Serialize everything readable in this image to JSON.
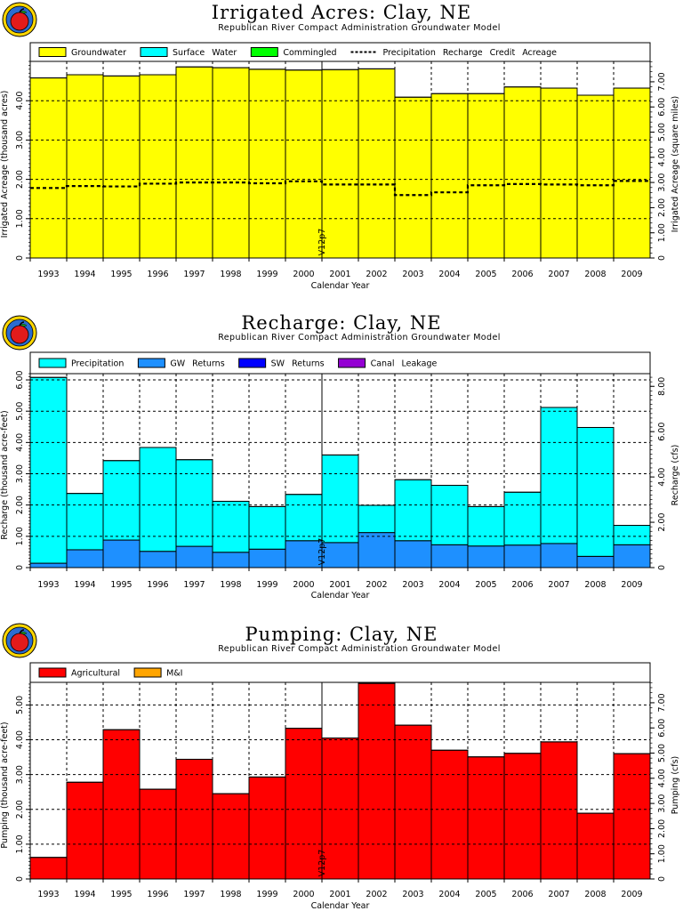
{
  "chart_data": [
    {
      "type": "area",
      "title": "Irrigated Acres:  Clay,  NE",
      "subtitle": "Republican River Compact Administration Groundwater Model",
      "xlabel": "Calendar Year",
      "ylabel": "Irrigated Acreage (thousand acres)",
      "y2label": "Irrigated Acreage (square miles)",
      "categories": [
        "1993",
        "1994",
        "1995",
        "1996",
        "1997",
        "1998",
        "1999",
        "2000",
        "2001",
        "2002",
        "2003",
        "2004",
        "2005",
        "2006",
        "2007",
        "2008",
        "2009"
      ],
      "ylim": [
        0,
        5
      ],
      "yticks": [
        "0",
        "1.00",
        "2.00",
        "3.00",
        "4.00"
      ],
      "y2ticks": [
        "0",
        "1.00",
        "2.00",
        "3.00",
        "4.00",
        "5.00",
        "6.00",
        "7.00"
      ],
      "y2lim": [
        0,
        7.81
      ],
      "legend": [
        {
          "name": "Groundwater",
          "color": "#ffff00",
          "style": "box"
        },
        {
          "name": "Surface Water",
          "color": "#00ffff",
          "style": "box"
        },
        {
          "name": "Commingled",
          "color": "#00ff00",
          "style": "box"
        },
        {
          "name": "Precipitation Recharge Credit Acreage",
          "color": "#000000",
          "style": "dash"
        }
      ],
      "series": [
        {
          "name": "Groundwater",
          "color": "#ffff00",
          "values": [
            4.58,
            4.66,
            4.63,
            4.66,
            4.86,
            4.84,
            4.8,
            4.78,
            4.79,
            4.81,
            4.09,
            4.18,
            4.18,
            4.35,
            4.32,
            4.14,
            4.32
          ]
        },
        {
          "name": "Surface Water",
          "color": "#00ffff",
          "values": [
            0,
            0,
            0,
            0,
            0,
            0,
            0,
            0,
            0,
            0,
            0,
            0,
            0,
            0,
            0,
            0,
            0
          ]
        },
        {
          "name": "Commingled",
          "color": "#00ff00",
          "values": [
            0,
            0,
            0,
            0,
            0,
            0,
            0,
            0,
            0,
            0,
            0,
            0,
            0,
            0,
            0,
            0,
            0
          ]
        }
      ],
      "dashed_series": {
        "name": "Precipitation Recharge Credit Acreage",
        "values": [
          1.78,
          1.83,
          1.82,
          1.89,
          1.92,
          1.92,
          1.9,
          1.95,
          1.87,
          1.87,
          1.6,
          1.67,
          1.85,
          1.88,
          1.87,
          1.85,
          1.96
        ]
      },
      "annotation": "V12p7"
    },
    {
      "type": "area",
      "title": "Recharge:  Clay,  NE",
      "subtitle": "Republican River Compact Administration Groundwater Model",
      "xlabel": "Calendar Year",
      "ylabel": "Recharge (thousand acre-feet)",
      "y2label": "Recharge (cfs)",
      "categories": [
        "1993",
        "1994",
        "1995",
        "1996",
        "1997",
        "1998",
        "1999",
        "2000",
        "2001",
        "2002",
        "2003",
        "2004",
        "2005",
        "2006",
        "2007",
        "2008",
        "2009"
      ],
      "ylim": [
        0,
        6.2
      ],
      "yticks": [
        "0",
        "1.00",
        "2.00",
        "3.00",
        "4.00",
        "5.00",
        "6.00"
      ],
      "y2ticks": [
        "0",
        "2.00",
        "4.00",
        "6.00",
        "8.00"
      ],
      "y2lim": [
        0,
        8.56
      ],
      "legend": [
        {
          "name": "Precipitation",
          "color": "#00ffff",
          "style": "box"
        },
        {
          "name": "GW Returns",
          "color": "#1e90ff",
          "style": "box"
        },
        {
          "name": "SW Returns",
          "color": "#0000ff",
          "style": "box"
        },
        {
          "name": "Canal Leakage",
          "color": "#9400d3",
          "style": "box"
        }
      ],
      "series": [
        {
          "name": "GW Returns",
          "color": "#1e90ff",
          "values": [
            0.14,
            0.57,
            0.88,
            0.52,
            0.68,
            0.49,
            0.59,
            0.86,
            0.8,
            1.12,
            0.86,
            0.73,
            0.69,
            0.72,
            0.77,
            0.36,
            0.73
          ]
        },
        {
          "name": "Precipitation",
          "color": "#00ffff",
          "values": [
            5.94,
            1.8,
            2.54,
            3.32,
            2.77,
            1.63,
            1.36,
            1.48,
            2.8,
            0.87,
            1.95,
            1.9,
            1.26,
            1.69,
            4.35,
            4.12,
            0.62
          ]
        },
        {
          "name": "SW Returns",
          "color": "#0000ff",
          "values": [
            0,
            0,
            0,
            0,
            0,
            0,
            0,
            0,
            0,
            0,
            0,
            0,
            0,
            0,
            0,
            0,
            0
          ]
        },
        {
          "name": "Canal Leakage",
          "color": "#9400d3",
          "values": [
            0,
            0,
            0,
            0,
            0,
            0,
            0,
            0,
            0,
            0,
            0,
            0,
            0,
            0,
            0,
            0,
            0
          ]
        }
      ],
      "annotation": "V12p7"
    },
    {
      "type": "area",
      "title": "Pumping:  Clay,  NE",
      "subtitle": "Republican River Compact Administration Groundwater Model",
      "xlabel": "Calendar Year",
      "ylabel": "Pumping (thousand acre-feet)",
      "y2label": "Pumping (cfs)",
      "categories": [
        "1993",
        "1994",
        "1995",
        "1996",
        "1997",
        "1998",
        "1999",
        "2000",
        "2001",
        "2002",
        "2003",
        "2004",
        "2005",
        "2006",
        "2007",
        "2008",
        "2009"
      ],
      "ylim": [
        0,
        5.65
      ],
      "yticks": [
        "0",
        "1.00",
        "2.00",
        "3.00",
        "4.00",
        "5.00"
      ],
      "y2ticks": [
        "0",
        "1.00",
        "2.00",
        "3.00",
        "4.00",
        "5.00",
        "6.00",
        "7.00"
      ],
      "y2lim": [
        0,
        7.81
      ],
      "legend": [
        {
          "name": "Agricultural",
          "color": "#ff0000",
          "style": "box"
        },
        {
          "name": "M&I",
          "color": "#ffa500",
          "style": "box"
        }
      ],
      "series": [
        {
          "name": "Agricultural",
          "color": "#ff0000",
          "values": [
            0.62,
            2.78,
            4.29,
            2.58,
            3.44,
            2.45,
            2.93,
            4.33,
            4.05,
            5.62,
            4.42,
            3.7,
            3.51,
            3.61,
            3.94,
            1.89,
            3.6
          ]
        },
        {
          "name": "M&I",
          "color": "#ffa500",
          "values": [
            0,
            0,
            0,
            0,
            0,
            0,
            0,
            0,
            0,
            0,
            0,
            0,
            0,
            0,
            0,
            0,
            0
          ]
        }
      ],
      "annotation": "V12p7"
    }
  ]
}
